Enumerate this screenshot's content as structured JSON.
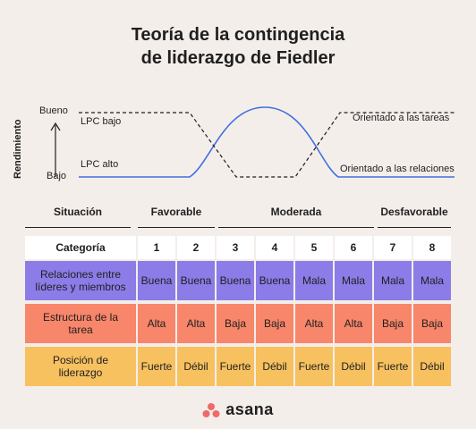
{
  "title": {
    "line1": "Teoría de la contingencia",
    "line2": "de liderazgo de Fiedler"
  },
  "chart": {
    "axis_title": "Rendimiento",
    "top_label": "Bueno",
    "bottom_label": "Bajo",
    "lpc_bajo": "LPC bajo",
    "lpc_alto": "LPC alto",
    "right_top": "Orientado a las tareas",
    "right_bottom": "Orientado a las relaciones",
    "solid_color": "#3f6fe0",
    "dashed_color": "#1f1f1f"
  },
  "table": {
    "situacion_label": "Situación",
    "groups": [
      "Favorable",
      "Moderada",
      "Desfavorable"
    ],
    "categoria_label": "Categoría",
    "categories": [
      "1",
      "2",
      "3",
      "4",
      "5",
      "6",
      "7",
      "8"
    ],
    "rows": [
      {
        "label": "Relaciones entre líderes y miembros",
        "values": [
          "Buena",
          "Buena",
          "Buena",
          "Buena",
          "Mala",
          "Mala",
          "Mala",
          "Mala"
        ],
        "color": "#8b7ce8"
      },
      {
        "label": "Estructura de la tarea",
        "values": [
          "Alta",
          "Alta",
          "Baja",
          "Baja",
          "Alta",
          "Alta",
          "Baja",
          "Baja"
        ],
        "color": "#f7866a"
      },
      {
        "label": "Posición de liderazgo",
        "values": [
          "Fuerte",
          "Débil",
          "Fuerte",
          "Débil",
          "Fuerte",
          "Débil",
          "Fuerte",
          "Débil"
        ],
        "color": "#f7c160"
      }
    ]
  },
  "logo": {
    "text": "asana",
    "icon": "asana-logo-icon",
    "color": "#f06a6a"
  }
}
